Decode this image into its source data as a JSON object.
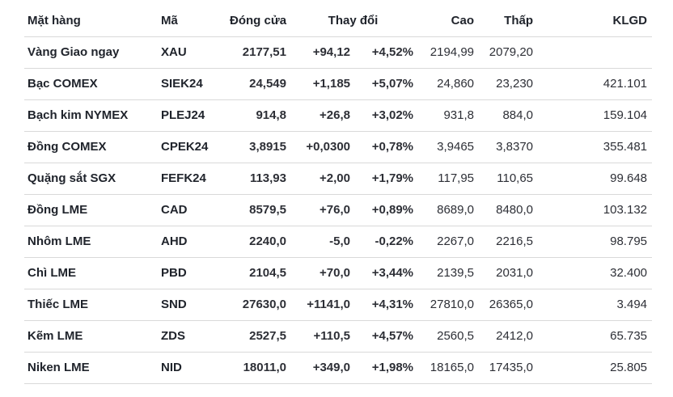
{
  "colors": {
    "positive": "#0e7d3c",
    "negative": "#b11226",
    "heading": "#20242c",
    "body_text": "#2d2f36",
    "row_border": "#d9d9d9",
    "background": "#ffffff"
  },
  "chart_data": {
    "type": "table",
    "columns": [
      "Mặt hàng",
      "Mã",
      "Đóng cửa",
      "Thay đổi",
      "Cao",
      "Thấp",
      "KLGD"
    ],
    "header": {
      "product": "Mặt hàng",
      "code": "Mã",
      "close": "Đóng cửa",
      "change": "Thay đổi",
      "high": "Cao",
      "low": "Thấp",
      "volume": "KLGD"
    },
    "rows": [
      {
        "product": "Vàng Giao ngay",
        "code": "XAU",
        "close": "2177,51",
        "change": "+94,12",
        "change_pct": "+4,52%",
        "high": "2194,99",
        "low": "2079,20",
        "volume": "",
        "direction": "up"
      },
      {
        "product": "Bạc COMEX",
        "code": "SIEK24",
        "close": "24,549",
        "change": "+1,185",
        "change_pct": "+5,07%",
        "high": "24,860",
        "low": "23,230",
        "volume": "421.101",
        "direction": "up"
      },
      {
        "product": "Bạch kim NYMEX",
        "code": "PLEJ24",
        "close": "914,8",
        "change": "+26,8",
        "change_pct": "+3,02%",
        "high": "931,8",
        "low": "884,0",
        "volume": "159.104",
        "direction": "up"
      },
      {
        "product": "Đồng COMEX",
        "code": "CPEK24",
        "close": "3,8915",
        "change": "+0,0300",
        "change_pct": "+0,78%",
        "high": "3,9465",
        "low": "3,8370",
        "volume": "355.481",
        "direction": "up"
      },
      {
        "product": "Quặng sắt SGX",
        "code": "FEFK24",
        "close": "113,93",
        "change": "+2,00",
        "change_pct": "+1,79%",
        "high": "117,95",
        "low": "110,65",
        "volume": "99.648",
        "direction": "up"
      },
      {
        "product": "Đồng LME",
        "code": "CAD",
        "close": "8579,5",
        "change": "+76,0",
        "change_pct": "+0,89%",
        "high": "8689,0",
        "low": "8480,0",
        "volume": "103.132",
        "direction": "up"
      },
      {
        "product": "Nhôm LME",
        "code": "AHD",
        "close": "2240,0",
        "change": "-5,0",
        "change_pct": "-0,22%",
        "high": "2267,0",
        "low": "2216,5",
        "volume": "98.795",
        "direction": "down"
      },
      {
        "product": "Chì LME",
        "code": "PBD",
        "close": "2104,5",
        "change": "+70,0",
        "change_pct": "+3,44%",
        "high": "2139,5",
        "low": "2031,0",
        "volume": "32.400",
        "direction": "up"
      },
      {
        "product": "Thiếc LME",
        "code": "SND",
        "close": "27630,0",
        "change": "+1141,0",
        "change_pct": "+4,31%",
        "high": "27810,0",
        "low": "26365,0",
        "volume": "3.494",
        "direction": "up"
      },
      {
        "product": "Kẽm LME",
        "code": "ZDS",
        "close": "2527,5",
        "change": "+110,5",
        "change_pct": "+4,57%",
        "high": "2560,5",
        "low": "2412,0",
        "volume": "65.735",
        "direction": "up"
      },
      {
        "product": "Niken LME",
        "code": "NID",
        "close": "18011,0",
        "change": "+349,0",
        "change_pct": "+1,98%",
        "high": "18165,0",
        "low": "17435,0",
        "volume": "25.805",
        "direction": "up"
      }
    ]
  }
}
